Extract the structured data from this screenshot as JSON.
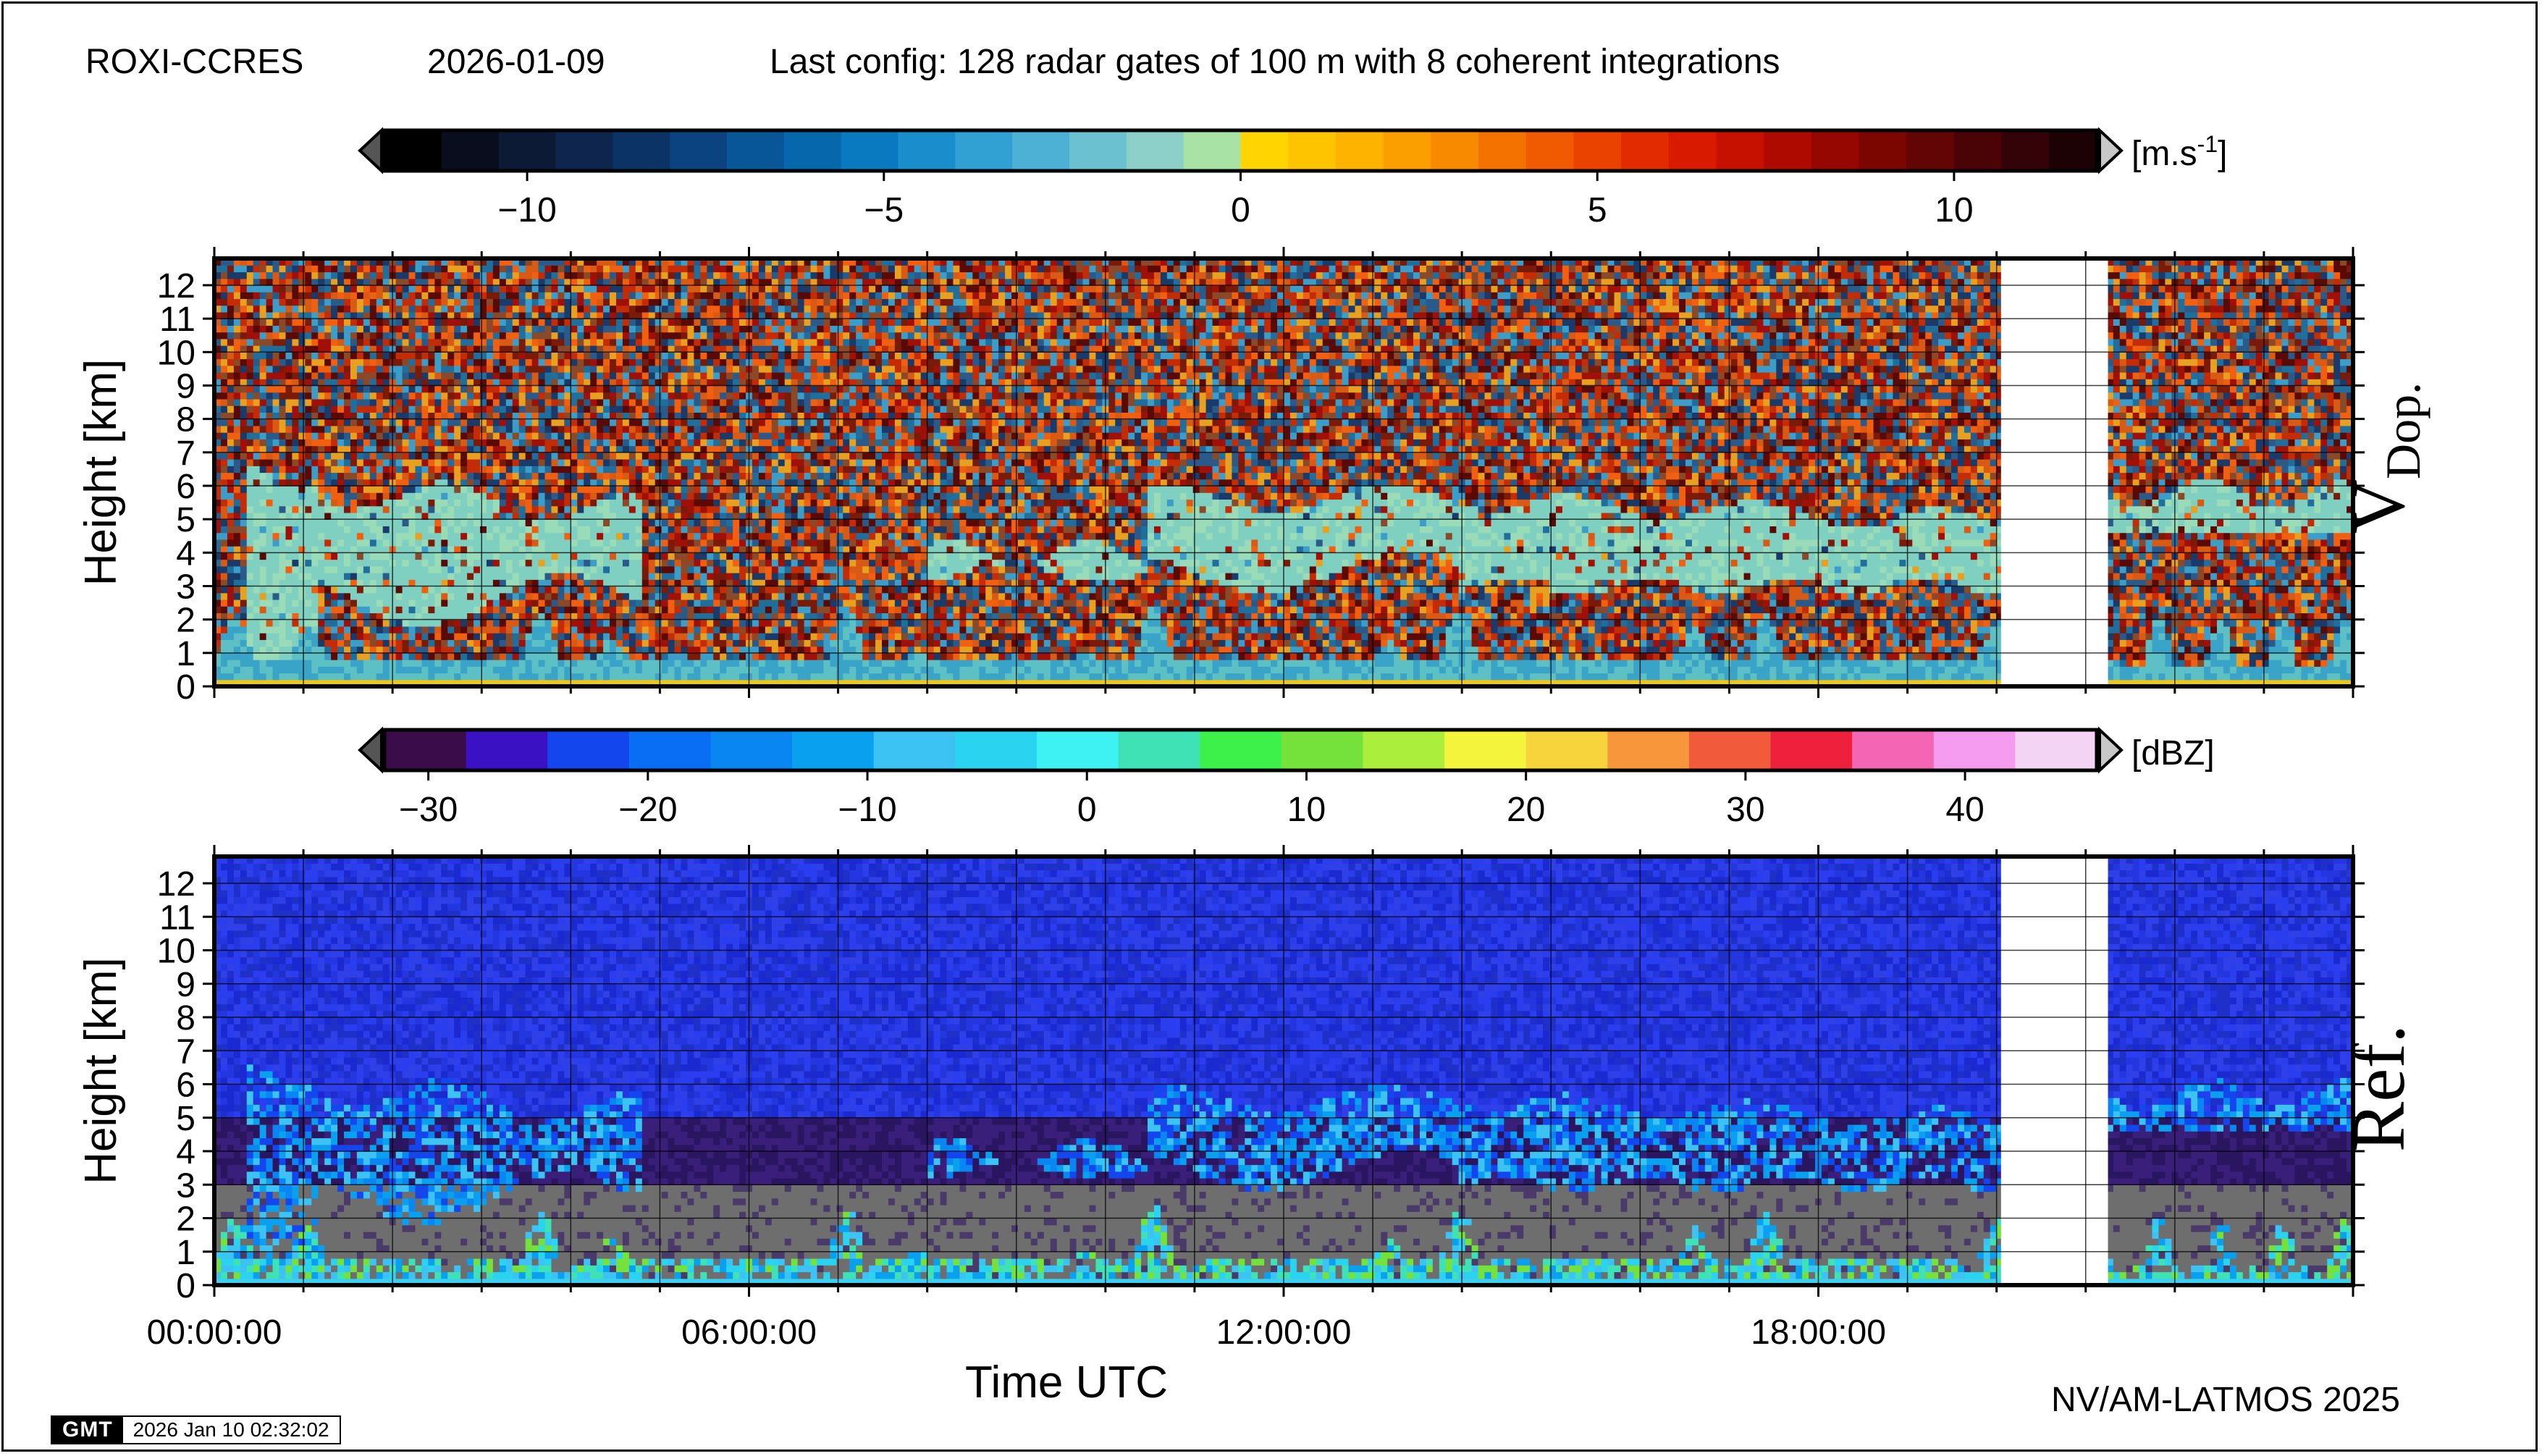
{
  "header": {
    "station": "ROXI-CCRES",
    "date": "2026-01-09",
    "config": "Last config: 128 radar gates of 100 m with 8 coherent integrations"
  },
  "footer": {
    "credit": "NV/AM-LATMOS 2025",
    "stamp_logo": "GMT",
    "stamp_date": "2026 Jan 10 02:32:02"
  },
  "chart_data": [
    {
      "type": "heatmap",
      "panel": "doppler-velocity",
      "label_main": "V",
      "label_sub": "Dop.",
      "ylabel": "Height [km]",
      "ylim": [
        0,
        12.8
      ],
      "yticks": [
        0,
        1,
        2,
        3,
        4,
        5,
        6,
        7,
        8,
        9,
        10,
        11,
        12
      ],
      "xlim_hours": [
        0,
        24
      ],
      "grid": true,
      "data_gap_hours": [
        20.05,
        21.25
      ],
      "colorbar": {
        "unit": "[m.s",
        "unit_sup": "-1",
        "unit_end": "]",
        "range": [
          -12,
          12
        ],
        "ticks": [
          -10,
          -5,
          0,
          5,
          10
        ],
        "tick_labels": [
          "−10",
          "−5",
          "0",
          "5",
          "10"
        ],
        "colors_negative": [
          "#000000",
          "#0a0d1e",
          "#0d1a35",
          "#0e254d",
          "#0c3366",
          "#0a437f",
          "#085597",
          "#0767ad",
          "#0a7ac0",
          "#1a8dcc",
          "#31a0d2",
          "#4cb1d4",
          "#6cc1d1",
          "#8dd0c9",
          "#a8e3a5"
        ],
        "colors_positive": [
          "#ffd400",
          "#ffc400",
          "#fdb300",
          "#fb9f00",
          "#f88a00",
          "#f47200",
          "#f05a00",
          "#ea4300",
          "#e22b00",
          "#d81a00",
          "#c61000",
          "#ae0a00",
          "#950700",
          "#7b0600",
          "#620504",
          "#4a0406",
          "#330307",
          "#1c0205"
        ]
      }
    },
    {
      "type": "heatmap",
      "panel": "reflectivity",
      "label_main": "Ref.",
      "ylabel": "Height [km]",
      "xlabel": "Time UTC",
      "ylim": [
        0,
        12.8
      ],
      "yticks": [
        0,
        1,
        2,
        3,
        4,
        5,
        6,
        7,
        8,
        9,
        10,
        11,
        12
      ],
      "xlim_hours": [
        0,
        24
      ],
      "xticks_hours": [
        0,
        6,
        12,
        18
      ],
      "xtick_labels": [
        "00:00:00",
        "06:00:00",
        "12:00:00",
        "18:00:00"
      ],
      "grid": true,
      "data_gap_hours": [
        20.05,
        21.25
      ],
      "colorbar": {
        "unit": "[dBZ]",
        "range": [
          -32,
          46
        ],
        "ticks": [
          -30,
          -20,
          -10,
          0,
          10,
          20,
          30,
          40
        ],
        "tick_labels": [
          "−30",
          "−20",
          "−10",
          "0",
          "10",
          "20",
          "30",
          "40"
        ],
        "colors": [
          "#3a0d4a",
          "#3a12c4",
          "#1446ee",
          "#0a6ef5",
          "#0a86f2",
          "#0aa0f0",
          "#3cc3f4",
          "#2ad4f0",
          "#3ef2f4",
          "#3ee2b4",
          "#3ef04a",
          "#74e23a",
          "#acee3c",
          "#f4f43c",
          "#f8d43c",
          "#f8963c",
          "#f25a3c",
          "#ee203c",
          "#f466b4",
          "#f69cf0",
          "#f4d4f4"
        ]
      }
    }
  ]
}
